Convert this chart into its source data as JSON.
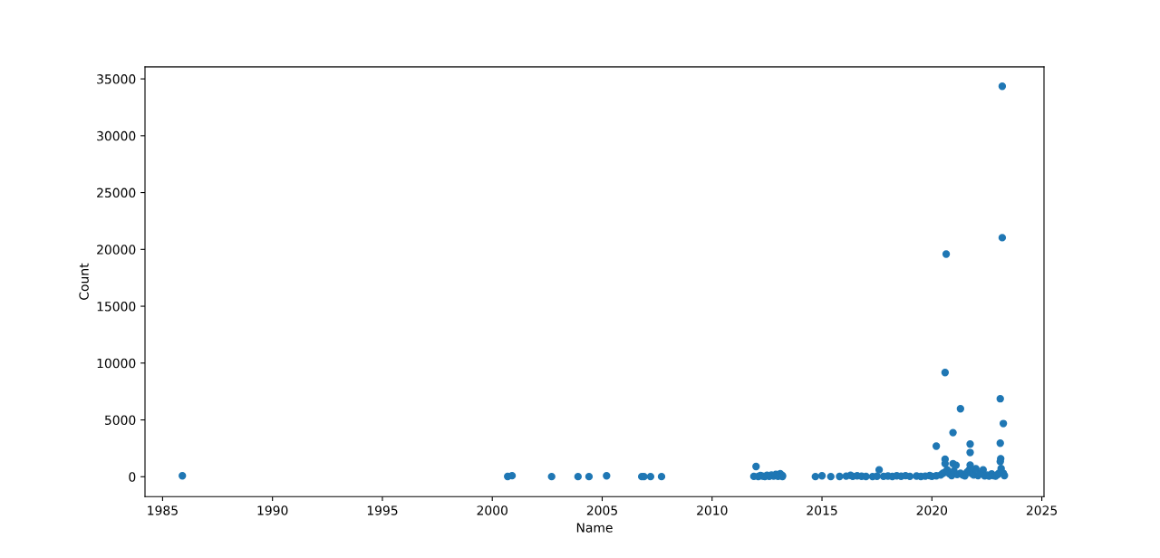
{
  "chart_data": {
    "type": "scatter",
    "xlabel": "Name",
    "ylabel": "Count",
    "xlim": [
      1984.2,
      2025.1
    ],
    "xticks": [
      1985,
      1990,
      1995,
      2000,
      2005,
      2010,
      2015,
      2020,
      2025
    ],
    "ylim": [
      -1750,
      36050
    ],
    "yticks": [
      0,
      5000,
      10000,
      15000,
      20000,
      25000,
      30000,
      35000
    ],
    "marker": "circle",
    "series": [
      {
        "color": "#1f77b4",
        "x": [
          1985.9,
          2000.7,
          2000.9,
          2002.7,
          2003.9,
          2004.4,
          2005.2,
          2006.8,
          2006.9,
          2007.2,
          2007.7,
          2011.9,
          2012.0,
          2012.1,
          2012.2,
          2012.3,
          2012.4,
          2012.5,
          2012.6,
          2012.7,
          2012.8,
          2012.9,
          2013.0,
          2013.1,
          2013.2,
          2013.2,
          2014.7,
          2015.0,
          2015.4,
          2015.8,
          2016.1,
          2016.3,
          2016.4,
          2016.6,
          2016.8,
          2017.0,
          2017.3,
          2017.5,
          2017.6,
          2017.8,
          2018.0,
          2018.2,
          2018.4,
          2018.6,
          2018.8,
          2019.0,
          2019.3,
          2019.5,
          2019.7,
          2019.9,
          2020.0,
          2020.2,
          2020.2,
          2020.4,
          2020.5,
          2020.6,
          2020.6,
          2020.6,
          2020.6,
          2020.65,
          2020.7,
          2020.8,
          2020.9,
          2020.96,
          2020.96,
          2021.0,
          2021.1,
          2021.15,
          2021.3,
          2021.3,
          2021.4,
          2021.5,
          2021.6,
          2021.7,
          2021.74,
          2021.74,
          2021.74,
          2021.8,
          2021.9,
          2022.0,
          2022.1,
          2022.2,
          2022.33,
          2022.4,
          2022.5,
          2022.6,
          2022.72,
          2022.8,
          2022.9,
          2023.0,
          2023.05,
          2023.11,
          2023.11,
          2023.13,
          2023.11,
          2023.15,
          2023.2,
          2023.2,
          2023.25,
          2023.25,
          2023.3
        ],
        "values": [
          80,
          20,
          90,
          10,
          10,
          10,
          80,
          10,
          10,
          10,
          10,
          30,
          900,
          20,
          100,
          50,
          20,
          120,
          30,
          150,
          60,
          200,
          40,
          260,
          100,
          20,
          10,
          80,
          10,
          20,
          50,
          120,
          30,
          80,
          40,
          20,
          10,
          40,
          610,
          30,
          60,
          20,
          80,
          40,
          90,
          30,
          60,
          20,
          50,
          100,
          30,
          2690,
          80,
          150,
          300,
          9170,
          1540,
          1150,
          400,
          19590,
          600,
          250,
          100,
          3880,
          1150,
          500,
          1010,
          200,
          5980,
          300,
          150,
          80,
          400,
          600,
          2870,
          2130,
          1030,
          300,
          150,
          700,
          100,
          300,
          610,
          80,
          150,
          50,
          240,
          100,
          50,
          200,
          300,
          6860,
          2950,
          1590,
          1330,
          720,
          34350,
          21030,
          4680,
          300,
          100
        ]
      }
    ]
  }
}
